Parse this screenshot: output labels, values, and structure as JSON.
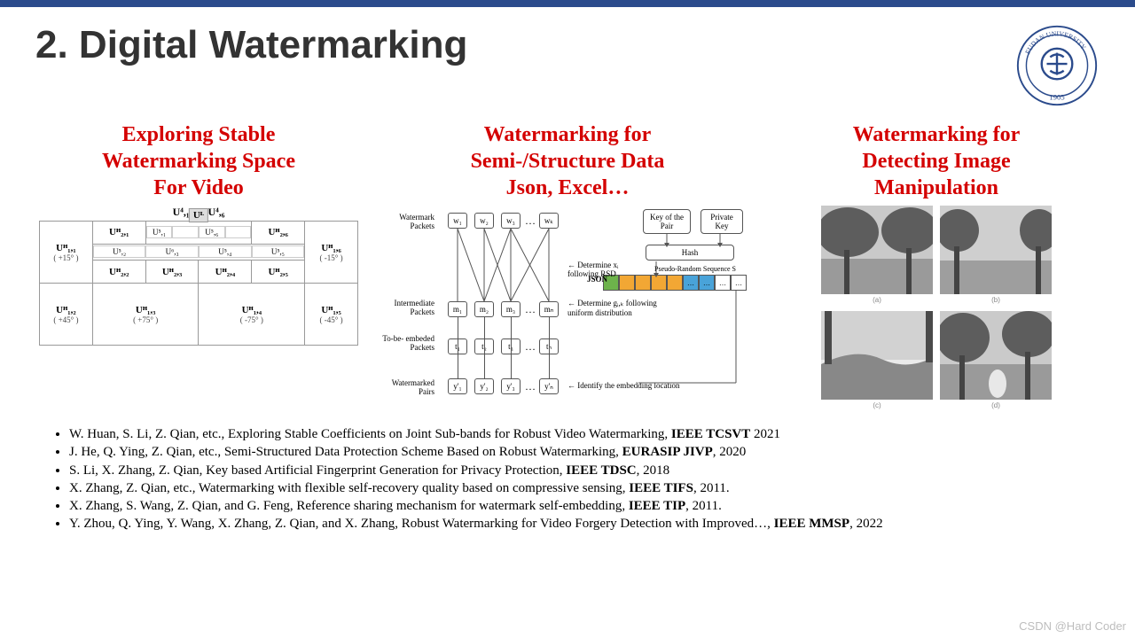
{
  "topbar_color": "#2b4b8c",
  "title": "2. Digital Watermarking",
  "logo": {
    "text_top": "FUDAN UNIVERSITY",
    "year": "1905",
    "stroke": "#2b4b8c"
  },
  "columns": [
    {
      "heading": "Exploring Stable\nWatermarking Space\nFor Video"
    },
    {
      "heading": "Watermarking for\nSemi-/Structure Data\nJson, Excel…"
    },
    {
      "heading": "Watermarking for\nDetecting Image\nManipulation"
    }
  ],
  "heading_color": "#d40000",
  "diag1": {
    "top_label": "U⁴,₁,…, U⁴,₆",
    "ul_label": "Uᴸ",
    "row1_inner4_a": [
      "U⁵,₁",
      "",
      "U⁵,₆",
      ""
    ],
    "row1_inner4_b": [
      "U⁵,₂",
      "U⁶,₃",
      "U⁵,₄",
      "U⁵,₅"
    ],
    "cells_row1": [
      {
        "main": "Uᴴ₁,₁",
        "sub": "( +15° )"
      },
      {
        "main": "Uᴴ₂,₁",
        "sub": ""
      },
      {
        "main": "Uᴴ₂,₆",
        "sub": ""
      },
      {
        "main": "Uᴴ₁,₆",
        "sub": "( -15° )"
      }
    ],
    "cells_row1b": [
      {
        "main": "Uᴴ₂,₂",
        "sub": ""
      },
      {
        "main": "Uᴴ₂,₃",
        "sub": ""
      },
      {
        "main": "Uᴴ₂,₄",
        "sub": ""
      },
      {
        "main": "Uᴴ₂,₅",
        "sub": ""
      }
    ],
    "cells_row2": [
      {
        "main": "Uᴴ₁,₂",
        "sub": "( +45° )"
      },
      {
        "main": "Uᴴ₁,₃",
        "sub": "( +75° )"
      },
      {
        "main": "Uᴴ₁,₄",
        "sub": "( -75° )"
      },
      {
        "main": "Uᴴ₁,₅",
        "sub": "( -45° )"
      }
    ]
  },
  "diag2": {
    "row_labels": [
      "Watermark\nPackets",
      "Intermediate\nPackets",
      "To-be-\nembeded\nPackets",
      "Watermarked\nPairs"
    ],
    "w_nodes": [
      "w₁",
      "w₂",
      "w₃",
      "…",
      "wₖ"
    ],
    "m_nodes": [
      "m₁",
      "m₂",
      "m₃",
      "…",
      "mₙ"
    ],
    "t_nodes": [
      "t₁",
      "t₂",
      "t₃",
      "…",
      "tₙ"
    ],
    "y_nodes": [
      "y'₁",
      "y'₂",
      "y'₃",
      "…",
      "y'ₙ"
    ],
    "box_key": "Key of the\nPair",
    "box_priv": "Private\nKey",
    "box_hash": "Hash",
    "seq_label": "Pseudo-Random Sequence S",
    "json_label": "JSON",
    "arrow1": "Determine xᵢ\nfollowing RSD",
    "arrow2": "Determine gᵢ,ₖ following\nuniform distribution",
    "arrow3": "Identify the embedding location",
    "seq_colors": [
      "#6db34b",
      "#f2a734",
      "#f2a734",
      "#f2a734",
      "#f2a734",
      "#49a3d9",
      "#49a3d9"
    ]
  },
  "diag3": {
    "captions": [
      "(a)",
      "(b)",
      "(c)",
      "(d)"
    ]
  },
  "references": [
    {
      "text": "W. Huan, S. Li, Z. Qian, etc., Exploring Stable Coefficients on Joint Sub-bands for Robust Video Watermarking, ",
      "venue": "IEEE TCSVT",
      "year": " 2021"
    },
    {
      "text": "J. He, Q. Ying, Z. Qian, etc., Semi-Structured Data Protection Scheme Based on Robust Watermarking, ",
      "venue": "EURASIP JIVP",
      "year": ", 2020"
    },
    {
      "text": "S. Li, X. Zhang, Z. Qian, Key based Artificial Fingerprint Generation for Privacy Protection, ",
      "venue": "IEEE TDSC",
      "year": ", 2018"
    },
    {
      "text": "X. Zhang, Z. Qian, etc., Watermarking with flexible self-recovery quality based on compressive sensing, ",
      "venue": "IEEE TIFS",
      "year": ", 2011."
    },
    {
      "text": "X. Zhang, S. Wang, Z. Qian, and G. Feng, Reference sharing mechanism for watermark self-embedding, ",
      "venue": "IEEE TIP",
      "year": ", 2011."
    },
    {
      "text": "Y. Zhou, Q. Ying, Y. Wang, X. Zhang, Z. Qian, and X. Zhang, Robust Watermarking for Video Forgery Detection with Improved…, ",
      "venue": "IEEE MMSP",
      "year": ", 2022"
    }
  ],
  "watermark": "CSDN @Hard Coder"
}
